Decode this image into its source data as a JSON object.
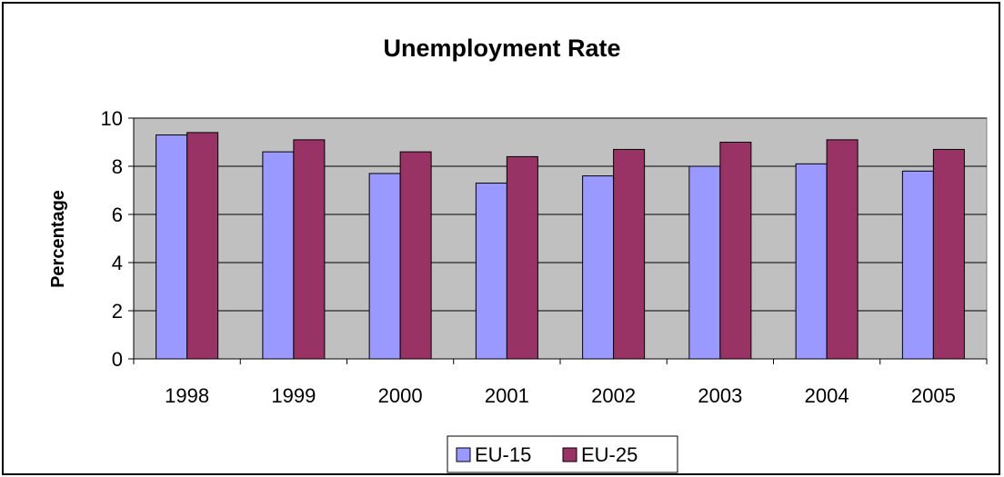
{
  "chart_data": {
    "type": "bar",
    "title": "Unemployment Rate",
    "xlabel": "",
    "ylabel": "Percentage",
    "categories": [
      "1998",
      "1999",
      "2000",
      "2001",
      "2002",
      "2003",
      "2004",
      "2005"
    ],
    "series": [
      {
        "name": "EU-15",
        "values": [
          9.3,
          8.6,
          7.7,
          7.3,
          7.6,
          8.0,
          8.1,
          7.8
        ],
        "color": "#9999ff"
      },
      {
        "name": "EU-25",
        "values": [
          9.4,
          9.1,
          8.6,
          8.4,
          8.7,
          9.0,
          9.1,
          8.7
        ],
        "color": "#993366"
      }
    ],
    "ylim": [
      0,
      10
    ],
    "yticks": [
      "0",
      "2",
      "4",
      "6",
      "8",
      "10"
    ],
    "grid": true,
    "plot_background": "#c0c0c0",
    "legend_position": "bottom"
  }
}
